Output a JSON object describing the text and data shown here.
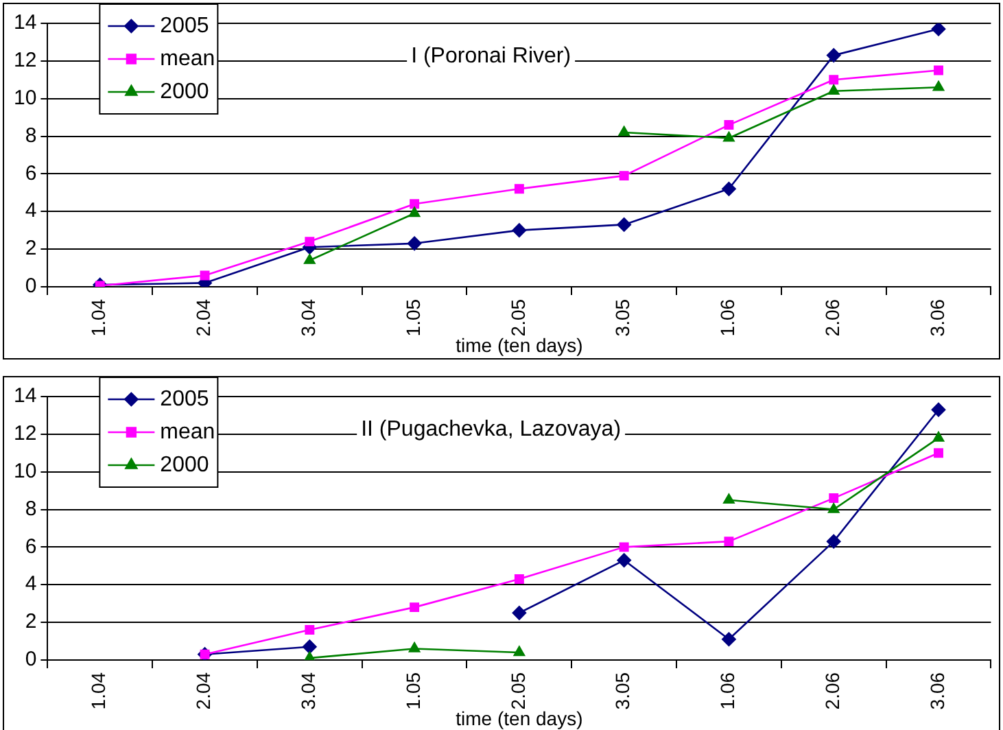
{
  "chart_data": [
    {
      "type": "line",
      "title": "I (Poronai River)",
      "xlabel": "time (ten days)",
      "categories": [
        "1.04",
        "2.04",
        "3.04",
        "1.05",
        "2.05",
        "3.05",
        "1.06",
        "2.06",
        "3.06"
      ],
      "series": [
        {
          "name": "2005",
          "color": "#000080",
          "marker": "diamond",
          "values": [
            0.1,
            0.2,
            2.1,
            2.3,
            3.0,
            3.3,
            5.2,
            12.3,
            13.7
          ]
        },
        {
          "name": "mean",
          "color": "#ff00ff",
          "marker": "square",
          "values": [
            0.05,
            0.6,
            2.4,
            4.4,
            5.2,
            5.9,
            8.6,
            11.0,
            11.5
          ]
        },
        {
          "name": "2000",
          "color": "#008000",
          "marker": "triangle",
          "values": [
            null,
            null,
            1.4,
            3.9,
            null,
            8.2,
            7.9,
            10.4,
            10.6
          ]
        }
      ],
      "ylim": [
        0,
        14
      ],
      "yticks": [
        0,
        2,
        4,
        6,
        8,
        10,
        12,
        14
      ],
      "grid": "y",
      "legend": "top left"
    },
    {
      "type": "line",
      "title": "II (Pugachevka, Lazovaya)",
      "xlabel": "time (ten days)",
      "categories": [
        "1.04",
        "2.04",
        "3.04",
        "1.05",
        "2.05",
        "3.05",
        "1.06",
        "2.06",
        "3.06"
      ],
      "series": [
        {
          "name": "2005",
          "color": "#000080",
          "marker": "diamond",
          "values": [
            null,
            0.3,
            0.7,
            null,
            2.5,
            5.3,
            1.1,
            6.3,
            13.3
          ]
        },
        {
          "name": "mean",
          "color": "#ff00ff",
          "marker": "square",
          "values": [
            null,
            0.3,
            1.6,
            2.8,
            4.3,
            6.0,
            6.3,
            8.6,
            11.0
          ]
        },
        {
          "name": "2000",
          "color": "#008000",
          "marker": "triangle",
          "values": [
            null,
            null,
            0.1,
            0.6,
            0.4,
            null,
            8.5,
            8.0,
            11.8
          ]
        }
      ],
      "ylim": [
        0,
        14
      ],
      "yticks": [
        0,
        2,
        4,
        6,
        8,
        10,
        12,
        14
      ],
      "grid": "y",
      "legend": "top left"
    }
  ]
}
